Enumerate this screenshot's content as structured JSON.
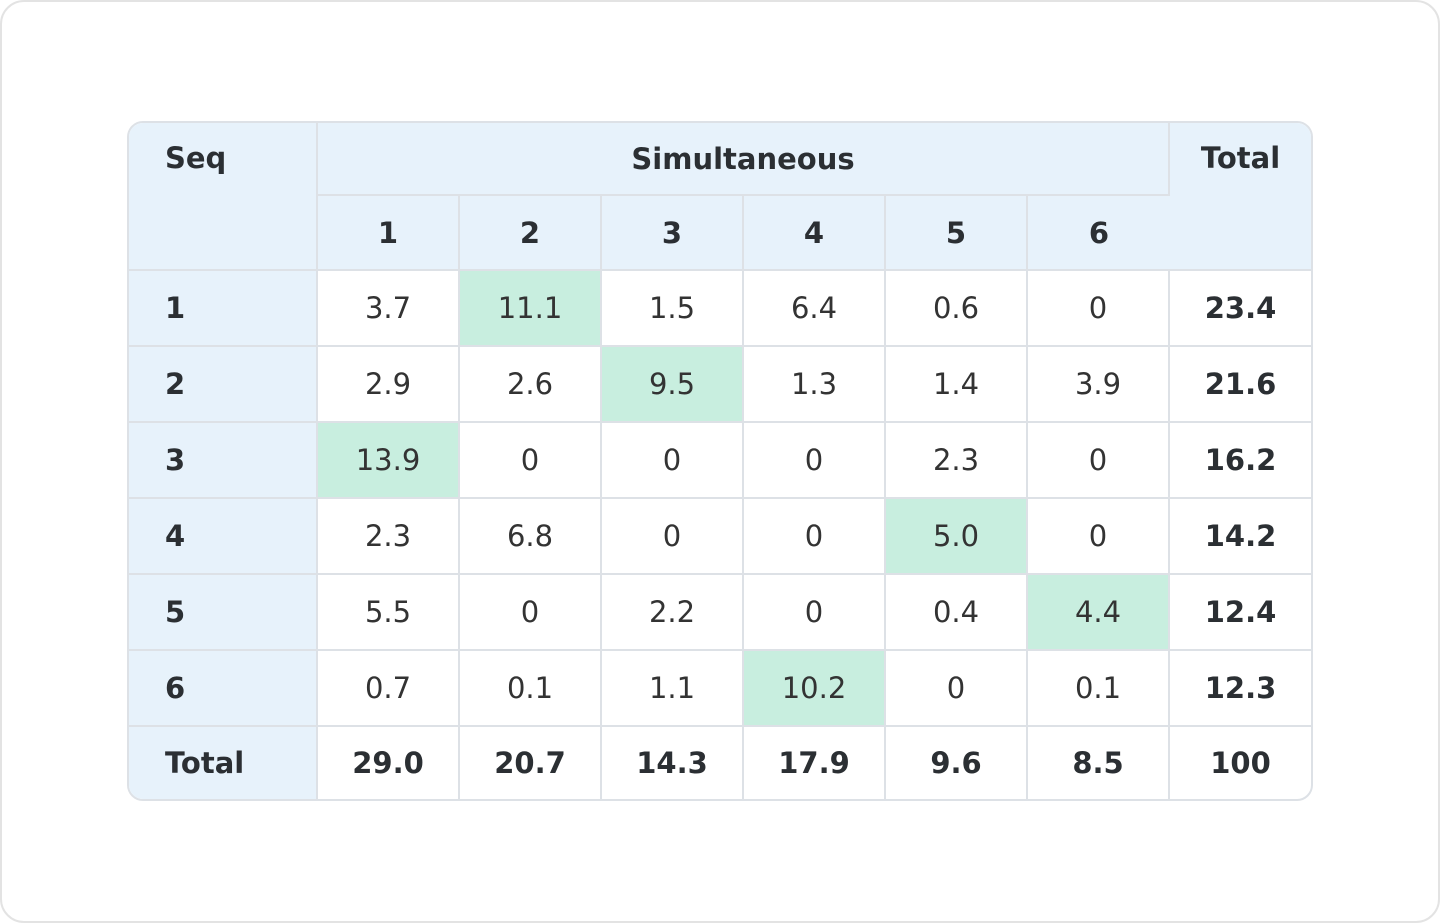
{
  "table": {
    "corner": "Seq",
    "group": "Simultaneous",
    "total": "Total",
    "columns": [
      "1",
      "2",
      "3",
      "4",
      "5",
      "6"
    ],
    "rows": [
      {
        "label": "1",
        "cells": [
          "3.7",
          "11.1",
          "1.5",
          "6.4",
          "0.6",
          "0"
        ],
        "total": "23.4"
      },
      {
        "label": "2",
        "cells": [
          "2.9",
          "2.6",
          "9.5",
          "1.3",
          "1.4",
          "3.9"
        ],
        "total": "21.6"
      },
      {
        "label": "3",
        "cells": [
          "13.9",
          "0",
          "0",
          "0",
          "2.3",
          "0"
        ],
        "total": "16.2"
      },
      {
        "label": "4",
        "cells": [
          "2.3",
          "6.8",
          "0",
          "0",
          "5.0",
          "0"
        ],
        "total": "14.2"
      },
      {
        "label": "5",
        "cells": [
          "5.5",
          "0",
          "2.2",
          "0",
          "0.4",
          "4.4"
        ],
        "total": "12.4"
      },
      {
        "label": "6",
        "cells": [
          "0.7",
          "0.1",
          "1.1",
          "10.2",
          "0",
          "0.1"
        ],
        "total": "12.3"
      }
    ],
    "footer": {
      "label": "Total",
      "cells": [
        "29.0",
        "20.7",
        "14.3",
        "17.9",
        "9.6",
        "8.5"
      ],
      "total": "100"
    },
    "highlighted_cells": [
      {
        "row": 0,
        "col": 1
      },
      {
        "row": 1,
        "col": 2
      },
      {
        "row": 2,
        "col": 0
      },
      {
        "row": 3,
        "col": 4
      },
      {
        "row": 4,
        "col": 5
      },
      {
        "row": 5,
        "col": 3
      }
    ]
  }
}
